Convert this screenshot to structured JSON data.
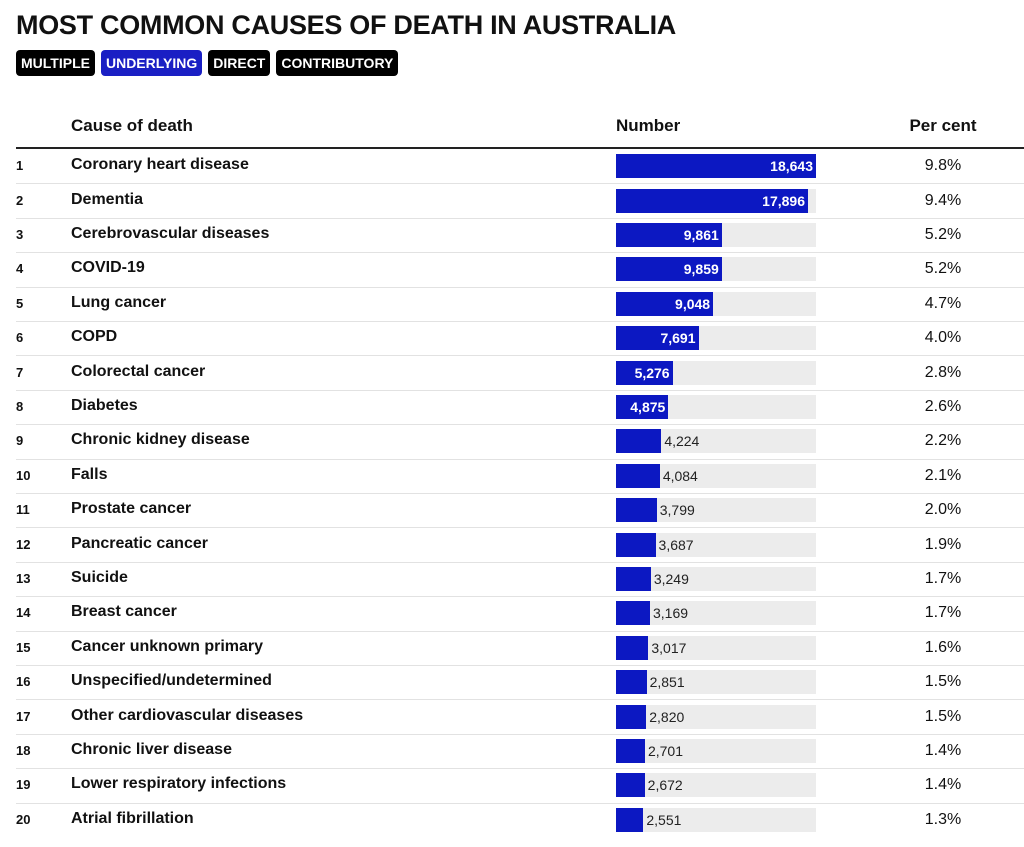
{
  "header": {
    "title": "MOST COMMON CAUSES OF DEATH IN AUSTRALIA"
  },
  "tabs": [
    {
      "label": "MULTIPLE",
      "active": false
    },
    {
      "label": "UNDERLYING",
      "active": true
    },
    {
      "label": "DIRECT",
      "active": false
    },
    {
      "label": "CONTRIBUTORY",
      "active": false
    }
  ],
  "table": {
    "columns": [
      "Cause of death",
      "Number",
      "Per cent"
    ],
    "rows": [
      {
        "rank": 1,
        "cause": "Coronary heart disease",
        "number": 18643,
        "number_label": "18,643",
        "percent": "9.8%"
      },
      {
        "rank": 2,
        "cause": "Dementia",
        "number": 17896,
        "number_label": "17,896",
        "percent": "9.4%"
      },
      {
        "rank": 3,
        "cause": "Cerebrovascular diseases",
        "number": 9861,
        "number_label": "9,861",
        "percent": "5.2%"
      },
      {
        "rank": 4,
        "cause": "COVID-19",
        "number": 9859,
        "number_label": "9,859",
        "percent": "5.2%"
      },
      {
        "rank": 5,
        "cause": "Lung cancer",
        "number": 9048,
        "number_label": "9,048",
        "percent": "4.7%"
      },
      {
        "rank": 6,
        "cause": "COPD",
        "number": 7691,
        "number_label": "7,691",
        "percent": "4.0%"
      },
      {
        "rank": 7,
        "cause": "Colorectal cancer",
        "number": 5276,
        "number_label": "5,276",
        "percent": "2.8%"
      },
      {
        "rank": 8,
        "cause": "Diabetes",
        "number": 4875,
        "number_label": "4,875",
        "percent": "2.6%"
      },
      {
        "rank": 9,
        "cause": "Chronic kidney disease",
        "number": 4224,
        "number_label": "4,224",
        "percent": "2.2%"
      },
      {
        "rank": 10,
        "cause": "Falls",
        "number": 4084,
        "number_label": "4,084",
        "percent": "2.1%"
      },
      {
        "rank": 11,
        "cause": "Prostate cancer",
        "number": 3799,
        "number_label": "3,799",
        "percent": "2.0%"
      },
      {
        "rank": 12,
        "cause": "Pancreatic cancer",
        "number": 3687,
        "number_label": "3,687",
        "percent": "1.9%"
      },
      {
        "rank": 13,
        "cause": "Suicide",
        "number": 3249,
        "number_label": "3,249",
        "percent": "1.7%"
      },
      {
        "rank": 14,
        "cause": "Breast cancer",
        "number": 3169,
        "number_label": "3,169",
        "percent": "1.7%"
      },
      {
        "rank": 15,
        "cause": "Cancer unknown primary",
        "number": 3017,
        "number_label": "3,017",
        "percent": "1.6%"
      },
      {
        "rank": 16,
        "cause": "Unspecified/undetermined",
        "number": 2851,
        "number_label": "2,851",
        "percent": "1.5%"
      },
      {
        "rank": 17,
        "cause": "Other cardiovascular diseases",
        "number": 2820,
        "number_label": "2,820",
        "percent": "1.5%"
      },
      {
        "rank": 18,
        "cause": "Chronic liver disease",
        "number": 2701,
        "number_label": "2,701",
        "percent": "1.4%"
      },
      {
        "rank": 19,
        "cause": "Lower respiratory infections",
        "number": 2672,
        "number_label": "2,672",
        "percent": "1.4%"
      },
      {
        "rank": 20,
        "cause": "Atrial fibrillation",
        "number": 2551,
        "number_label": "2,551",
        "percent": "1.3%"
      }
    ]
  }
}
